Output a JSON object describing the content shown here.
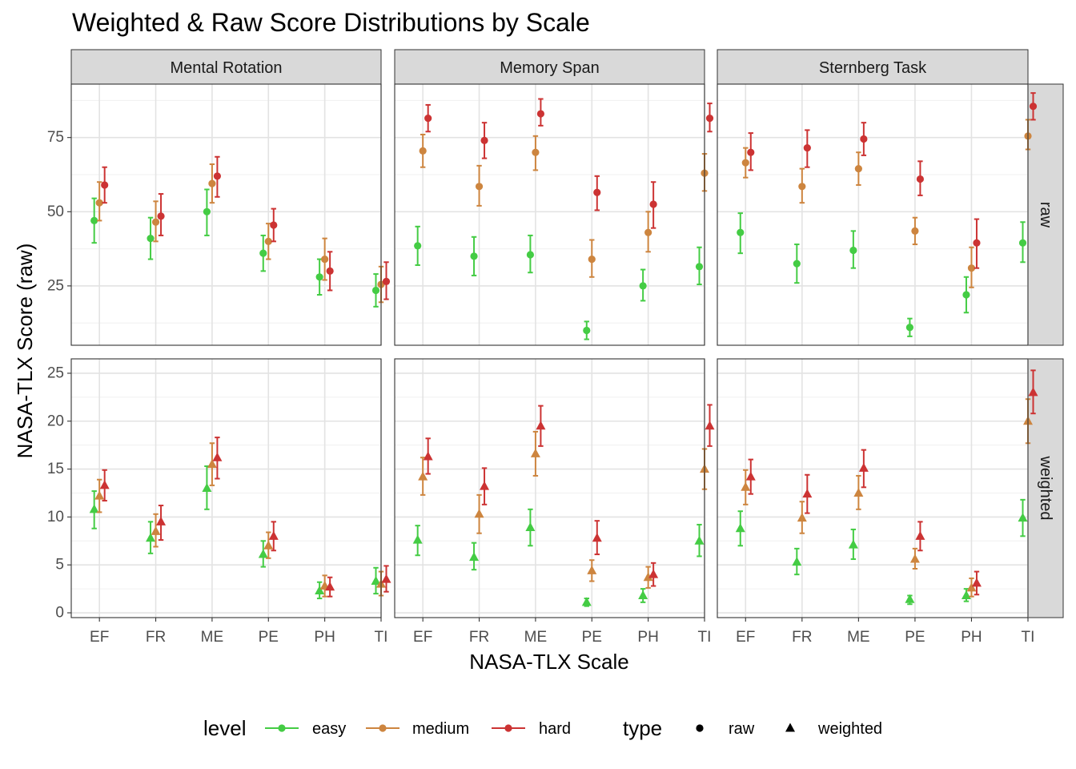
{
  "chart_data": {
    "type": "scatter",
    "title": "Weighted & Raw Score Distributions by Scale",
    "xlabel": "NASA-TLX Scale",
    "ylabel": "NASA-TLX Score (raw)",
    "categories": [
      "EF",
      "FR",
      "ME",
      "PE",
      "PH",
      "TI"
    ],
    "facets_col": [
      "Mental Rotation",
      "Memory Span",
      "Sternberg Task"
    ],
    "facets_row": [
      "raw",
      "weighted"
    ],
    "grid": true,
    "legend_position": "bottom",
    "levels": [
      {
        "name": "easy",
        "color": "#44cc44"
      },
      {
        "name": "medium",
        "color": "#cd853f"
      },
      {
        "name": "hard",
        "color": "#cc3333"
      }
    ],
    "types": [
      {
        "name": "raw",
        "shape": "circle"
      },
      {
        "name": "weighted",
        "shape": "triangle"
      }
    ],
    "legend": {
      "level_title": "level",
      "type_title": "type",
      "level_labels": [
        "easy",
        "medium",
        "hard"
      ],
      "type_labels": [
        "raw",
        "weighted"
      ]
    },
    "rows": {
      "raw": {
        "ylim": [
          5,
          93
        ],
        "yticks": [
          25,
          50,
          75
        ],
        "panels": {
          "Mental Rotation": {
            "easy": [
              [
                47,
                39.5,
                54.5
              ],
              [
                41,
                34,
                48
              ],
              [
                50,
                42,
                57.5
              ],
              [
                36,
                30,
                42
              ],
              [
                28,
                22,
                34
              ],
              [
                23.5,
                18,
                29
              ]
            ],
            "medium": [
              [
                53,
                47,
                60
              ],
              [
                46.5,
                40,
                53.5
              ],
              [
                59.5,
                53,
                66
              ],
              [
                40,
                34,
                46
              ],
              [
                34,
                27,
                41
              ],
              [
                25.5,
                19.5,
                31.5
              ]
            ],
            "hard": [
              [
                59,
                53,
                65
              ],
              [
                48.5,
                42,
                56
              ],
              [
                62,
                55,
                68.5
              ],
              [
                45.5,
                40,
                51
              ],
              [
                30,
                23.5,
                36.5
              ],
              [
                26.5,
                20.5,
                33
              ]
            ]
          },
          "Memory Span": {
            "easy": [
              [
                38.5,
                32,
                45
              ],
              [
                35,
                28.5,
                41.5
              ],
              [
                35.5,
                29.5,
                42
              ],
              [
                10,
                7,
                13
              ],
              [
                25,
                20,
                30.5
              ],
              [
                31.5,
                25.5,
                38
              ]
            ],
            "medium": [
              [
                70.5,
                65,
                76
              ],
              [
                58.5,
                52,
                65.5
              ],
              [
                70,
                64,
                75.5
              ],
              [
                34,
                28,
                40.5
              ],
              [
                43,
                36.5,
                50
              ],
              [
                63,
                57,
                69.5
              ]
            ],
            "hard": [
              [
                81.5,
                77,
                86
              ],
              [
                74,
                68,
                80
              ],
              [
                83,
                79,
                88
              ],
              [
                56.5,
                50.5,
                62
              ],
              [
                52.5,
                44.5,
                60
              ],
              [
                81.5,
                77,
                86.5
              ]
            ]
          },
          "Sternberg Task": {
            "easy": [
              [
                43,
                36,
                49.5
              ],
              [
                32.5,
                26,
                39
              ],
              [
                37,
                31,
                43.5
              ],
              [
                11,
                8,
                14
              ],
              [
                22,
                16,
                28
              ],
              [
                39.5,
                33,
                46.5
              ]
            ],
            "medium": [
              [
                66.5,
                61.5,
                71.5
              ],
              [
                58.5,
                53,
                64.5
              ],
              [
                64.5,
                59,
                70
              ],
              [
                43.5,
                39,
                48
              ],
              [
                31,
                24.5,
                38
              ],
              [
                75.5,
                71,
                81
              ]
            ],
            "hard": [
              [
                70,
                64,
                76.5
              ],
              [
                71.5,
                65,
                77.5
              ],
              [
                74.5,
                69,
                80
              ],
              [
                61,
                55.5,
                67
              ],
              [
                39.5,
                31,
                47.5
              ],
              [
                85.5,
                81,
                90
              ]
            ]
          }
        }
      },
      "weighted": {
        "ylim": [
          -0.5,
          26.5
        ],
        "yticks": [
          0,
          5,
          10,
          15,
          20,
          25
        ],
        "panels": {
          "Mental Rotation": {
            "easy": [
              [
                10.8,
                8.8,
                12.7
              ],
              [
                7.8,
                6.2,
                9.5
              ],
              [
                13,
                10.8,
                15.3
              ],
              [
                6.1,
                4.8,
                7.5
              ],
              [
                2.3,
                1.5,
                3.2
              ],
              [
                3.3,
                2.0,
                4.7
              ]
            ],
            "medium": [
              [
                12.2,
                10.5,
                13.9
              ],
              [
                8.5,
                6.9,
                10.3
              ],
              [
                15.5,
                13.3,
                17.7
              ],
              [
                7,
                5.7,
                8.4
              ],
              [
                2.8,
                1.7,
                3.9
              ],
              [
                3.0,
                1.8,
                4.3
              ]
            ],
            "hard": [
              [
                13.3,
                11.7,
                14.9
              ],
              [
                9.5,
                7.6,
                11.2
              ],
              [
                16.2,
                14.0,
                18.3
              ],
              [
                8,
                6.5,
                9.5
              ],
              [
                2.7,
                1.7,
                3.7
              ],
              [
                3.5,
                2.2,
                4.9
              ]
            ]
          },
          "Memory Span": {
            "easy": [
              [
                7.6,
                6.0,
                9.1
              ],
              [
                5.8,
                4.5,
                7.3
              ],
              [
                8.9,
                7.0,
                10.8
              ],
              [
                1.1,
                0.7,
                1.5
              ],
              [
                1.8,
                1.1,
                2.5
              ],
              [
                7.5,
                5.9,
                9.2
              ]
            ],
            "medium": [
              [
                14.2,
                12.3,
                16.2
              ],
              [
                10.3,
                8.3,
                12.3
              ],
              [
                16.6,
                14.3,
                18.9
              ],
              [
                4.4,
                3.3,
                5.5
              ],
              [
                3.7,
                2.6,
                4.8
              ],
              [
                15,
                12.9,
                17.1
              ]
            ],
            "hard": [
              [
                16.3,
                14.5,
                18.2
              ],
              [
                13.2,
                11.3,
                15.1
              ],
              [
                19.5,
                17.4,
                21.6
              ],
              [
                7.8,
                6.1,
                9.6
              ],
              [
                4.0,
                2.8,
                5.2
              ],
              [
                19.5,
                17.4,
                21.7
              ]
            ]
          },
          "Sternberg Task": {
            "easy": [
              [
                8.8,
                7.0,
                10.6
              ],
              [
                5.3,
                4.0,
                6.7
              ],
              [
                7.1,
                5.6,
                8.7
              ],
              [
                1.4,
                0.9,
                1.8
              ],
              [
                1.8,
                1.2,
                2.5
              ],
              [
                9.9,
                8.0,
                11.8
              ]
            ],
            "medium": [
              [
                13.1,
                11.3,
                14.9
              ],
              [
                9.9,
                8.3,
                11.6
              ],
              [
                12.5,
                10.8,
                14.3
              ],
              [
                5.6,
                4.6,
                6.7
              ],
              [
                2.6,
                1.7,
                3.6
              ],
              [
                20,
                17.7,
                22.3
              ]
            ],
            "hard": [
              [
                14.2,
                12.4,
                16.0
              ],
              [
                12.4,
                10.4,
                14.4
              ],
              [
                15.1,
                13.1,
                17.0
              ],
              [
                8.0,
                6.5,
                9.5
              ],
              [
                3.1,
                1.9,
                4.3
              ],
              [
                23,
                20.8,
                25.3
              ]
            ]
          }
        }
      }
    }
  }
}
